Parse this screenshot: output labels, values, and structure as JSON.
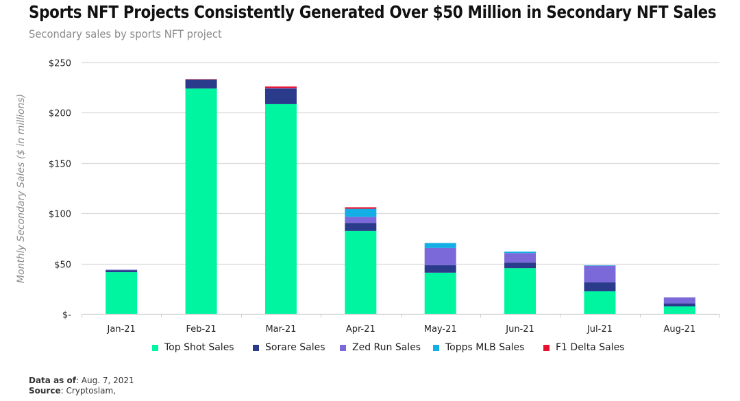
{
  "header": {
    "title": "Sports NFT Projects Consistently Generated Over $50 Million in Secondary NFT Sales",
    "subtitle": "Secondary sales by sports NFT project"
  },
  "footer": {
    "data_as_of_label": "Data as of",
    "data_as_of_value": ": Aug. 7, 2021",
    "source_label": "Source",
    "source_value": ": Cryptoslam,"
  },
  "chart_data": {
    "type": "bar",
    "stacked": true,
    "title": "Sports NFT Projects Consistently Generated Over $50 Million in Secondary NFT Sales",
    "subtitle": "Secondary sales by sports NFT project",
    "xlabel": "",
    "ylabel": "Monthly Secondary Sales ($ in millions)",
    "ylim": [
      0,
      250
    ],
    "yticks": [
      0,
      50,
      100,
      150,
      200,
      250
    ],
    "ytick_labels": [
      "$-",
      "$50",
      "$100",
      "$150",
      "$200",
      "$250"
    ],
    "grid": true,
    "legend_position": "bottom",
    "categories": [
      "Jan-21",
      "Feb-21",
      "Mar-21",
      "Apr-21",
      "May-21",
      "Jun-21",
      "Jul-21",
      "Aug-21"
    ],
    "series": [
      {
        "name": "Top Shot Sales",
        "color": "#00F5A0",
        "values": [
          41.5,
          224,
          208.5,
          82.5,
          41,
          45.5,
          22.5,
          7.5
        ]
      },
      {
        "name": "Sorare Sales",
        "color": "#2A3B8C",
        "values": [
          2,
          9,
          15.5,
          8,
          7.5,
          5.5,
          9,
          3
        ]
      },
      {
        "name": "Zed Run Sales",
        "color": "#7B68D9",
        "values": [
          0.5,
          0,
          0.5,
          6,
          17,
          9.5,
          16.5,
          6
        ]
      },
      {
        "name": "Topps MLB Sales",
        "color": "#14AEE6",
        "values": [
          0,
          0,
          0,
          8,
          5,
          1.5,
          0.3,
          0
        ]
      },
      {
        "name": "F1 Delta Sales",
        "color": "#E8112D",
        "values": [
          0,
          0.3,
          1.5,
          1.5,
          0,
          0,
          0,
          0
        ]
      }
    ]
  }
}
